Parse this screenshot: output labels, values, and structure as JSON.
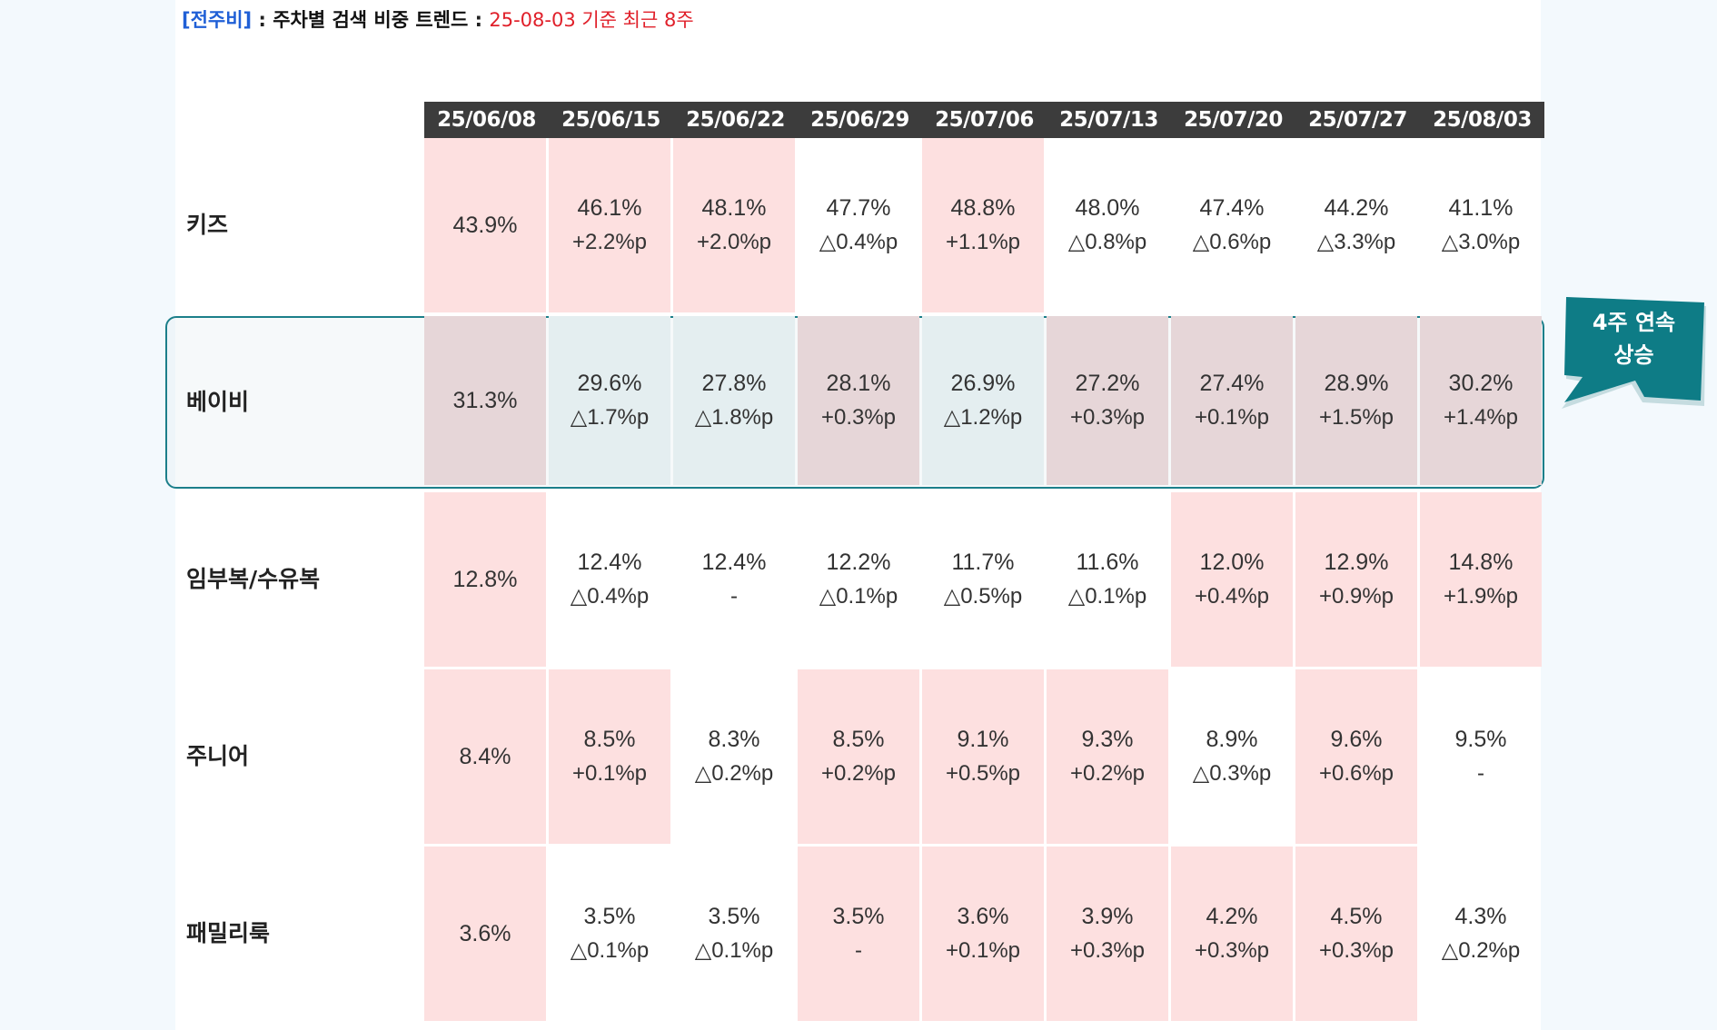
{
  "caption": {
    "tag": "[전주비]",
    "colon1": " : ",
    "title": "주차별 검색 비중 트렌드",
    "colon2": " : ",
    "note": "25-08-03 기준 최근 8주"
  },
  "columns": [
    "25/06/08",
    "25/06/15",
    "25/06/22",
    "25/06/29",
    "25/07/06",
    "25/07/13",
    "25/07/20",
    "25/07/27",
    "25/08/03"
  ],
  "rows": [
    {
      "label": "키즈",
      "cells": [
        {
          "value": "43.9%",
          "delta": "",
          "up": true
        },
        {
          "value": "46.1%",
          "delta": "+2.2%p",
          "up": true
        },
        {
          "value": "48.1%",
          "delta": "+2.0%p",
          "up": true
        },
        {
          "value": "47.7%",
          "delta": "△0.4%p",
          "up": false
        },
        {
          "value": "48.8%",
          "delta": "+1.1%p",
          "up": true
        },
        {
          "value": "48.0%",
          "delta": "△0.8%p",
          "up": false
        },
        {
          "value": "47.4%",
          "delta": "△0.6%p",
          "up": false
        },
        {
          "value": "44.2%",
          "delta": "△3.3%p",
          "up": false
        },
        {
          "value": "41.1%",
          "delta": "△3.0%p",
          "up": false
        }
      ]
    },
    {
      "label": "베이비",
      "cells": [
        {
          "value": "31.3%",
          "delta": "",
          "up": true
        },
        {
          "value": "29.6%",
          "delta": "△1.7%p",
          "up": false
        },
        {
          "value": "27.8%",
          "delta": "△1.8%p",
          "up": false
        },
        {
          "value": "28.1%",
          "delta": "+0.3%p",
          "up": true
        },
        {
          "value": "26.9%",
          "delta": "△1.2%p",
          "up": false
        },
        {
          "value": "27.2%",
          "delta": "+0.3%p",
          "up": true
        },
        {
          "value": "27.4%",
          "delta": "+0.1%p",
          "up": true
        },
        {
          "value": "28.9%",
          "delta": "+1.5%p",
          "up": true
        },
        {
          "value": "30.2%",
          "delta": "+1.4%p",
          "up": true
        }
      ]
    },
    {
      "label": "임부복/수유복",
      "cells": [
        {
          "value": "12.8%",
          "delta": "",
          "up": true
        },
        {
          "value": "12.4%",
          "delta": "△0.4%p",
          "up": false
        },
        {
          "value": "12.4%",
          "delta": "-",
          "up": false
        },
        {
          "value": "12.2%",
          "delta": "△0.1%p",
          "up": false
        },
        {
          "value": "11.7%",
          "delta": "△0.5%p",
          "up": false
        },
        {
          "value": "11.6%",
          "delta": "△0.1%p",
          "up": false
        },
        {
          "value": "12.0%",
          "delta": "+0.4%p",
          "up": true
        },
        {
          "value": "12.9%",
          "delta": "+0.9%p",
          "up": true
        },
        {
          "value": "14.8%",
          "delta": "+1.9%p",
          "up": true
        }
      ]
    },
    {
      "label": "주니어",
      "cells": [
        {
          "value": "8.4%",
          "delta": "",
          "up": true
        },
        {
          "value": "8.5%",
          "delta": "+0.1%p",
          "up": true
        },
        {
          "value": "8.3%",
          "delta": "△0.2%p",
          "up": false
        },
        {
          "value": "8.5%",
          "delta": "+0.2%p",
          "up": true
        },
        {
          "value": "9.1%",
          "delta": "+0.5%p",
          "up": true
        },
        {
          "value": "9.3%",
          "delta": "+0.2%p",
          "up": true
        },
        {
          "value": "8.9%",
          "delta": "△0.3%p",
          "up": false
        },
        {
          "value": "9.6%",
          "delta": "+0.6%p",
          "up": true
        },
        {
          "value": "9.5%",
          "delta": "-",
          "up": false
        }
      ]
    },
    {
      "label": "패밀리룩",
      "cells": [
        {
          "value": "3.6%",
          "delta": "",
          "up": true
        },
        {
          "value": "3.5%",
          "delta": "△0.1%p",
          "up": false
        },
        {
          "value": "3.5%",
          "delta": "△0.1%p",
          "up": false
        },
        {
          "value": "3.5%",
          "delta": "-",
          "up": true
        },
        {
          "value": "3.6%",
          "delta": "+0.1%p",
          "up": true
        },
        {
          "value": "3.9%",
          "delta": "+0.3%p",
          "up": true
        },
        {
          "value": "4.2%",
          "delta": "+0.3%p",
          "up": true
        },
        {
          "value": "4.5%",
          "delta": "+0.3%p",
          "up": true
        },
        {
          "value": "4.3%",
          "delta": "△0.2%p",
          "up": false
        }
      ]
    }
  ],
  "callout": {
    "line1": "4주 연속",
    "line2": "상승",
    "color": "#0e7c86"
  },
  "colors": {
    "increase_bg": "#fde0e0",
    "header_bg": "#3c3c3c",
    "highlight_border": "#1c7f8a"
  }
}
